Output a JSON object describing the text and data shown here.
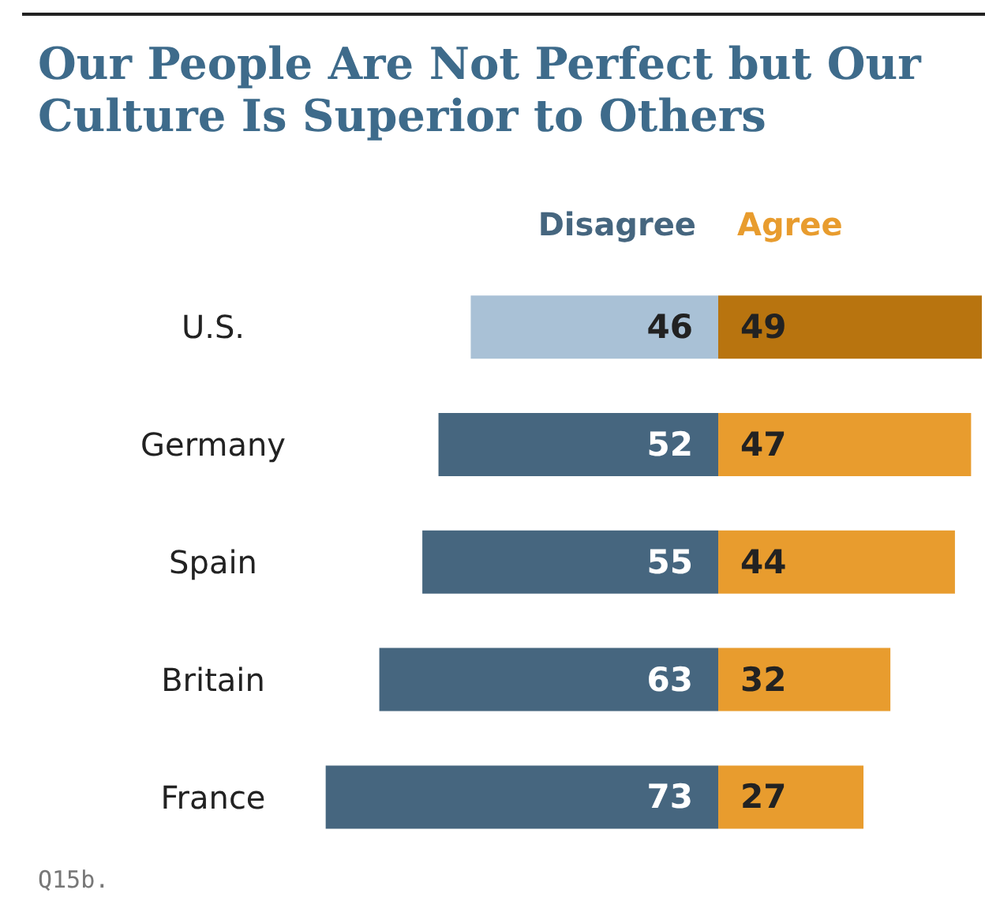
{
  "chart_data": [
    {
      "type": "bar",
      "orientation": "horizontal",
      "title": "Our People Are Not Perfect but Our Culture Is Superior to Others",
      "categories": [
        "U.S.",
        "Germany",
        "Spain",
        "Britain",
        "France"
      ],
      "xlim": [
        73,
        0
      ],
      "series": [
        {
          "name": "Disagree",
          "color": "#46667f",
          "colors": [
            "#a9c1d6",
            "#46667f",
            "#46667f",
            "#46667f",
            "#46667f"
          ],
          "values": [
            46,
            52,
            55,
            63,
            73
          ]
        }
      ],
      "data_labels": true,
      "tick_labels": "y",
      "annotations": [
        "Q15b."
      ]
    },
    {
      "type": "bar",
      "orientation": "horizontal",
      "categories": [
        null,
        null,
        null,
        null,
        null
      ],
      "xlim": [
        0,
        49
      ],
      "series": [
        {
          "name": "Agree",
          "color": "#e89c2e",
          "colors": [
            "#b8740f",
            "#e89c2e",
            "#e89c2e",
            "#e89c2e",
            "#e89c2e"
          ],
          "values": [
            49,
            47,
            44,
            32,
            27
          ]
        }
      ],
      "data_labels": true
    }
  ]
}
